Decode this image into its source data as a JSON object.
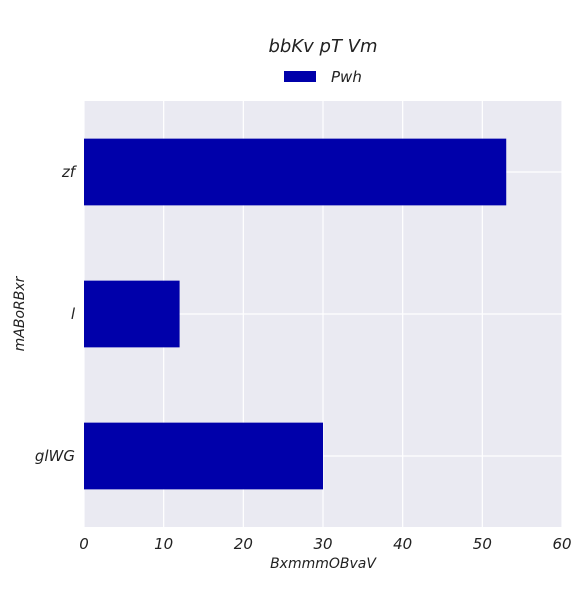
{
  "chart_data": {
    "type": "bar",
    "orientation": "horizontal",
    "title": "bbKv  pT Vm",
    "xlabel": "BxmmmOBvaV",
    "ylabel": "mABoRBxr",
    "categories": [
      "glWG",
      "l",
      "zf"
    ],
    "series": [
      {
        "name": "Pwh",
        "values": [
          30,
          12,
          53
        ]
      }
    ],
    "xlim": [
      0,
      60
    ],
    "xticks": [
      0,
      10,
      20,
      30,
      40,
      50,
      60
    ],
    "xtick_labels": [
      "0",
      "10",
      "20",
      "30",
      "40",
      "50",
      "60"
    ],
    "grid": true,
    "legend_position": "top-center",
    "colors": {
      "bar": "#0000aa",
      "plot_background": "#eaeaf2",
      "grid": "#ffffff"
    }
  }
}
